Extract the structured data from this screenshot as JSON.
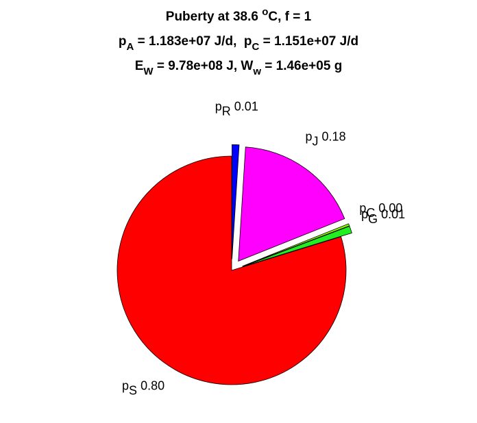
{
  "chart_data": {
    "type": "pie",
    "title_lines": [
      [
        {
          "text": "Puberty at 38.6 "
        },
        {
          "text": "o",
          "shift": "sup"
        },
        {
          "text": "C, f = 1"
        }
      ],
      [
        {
          "text": "p"
        },
        {
          "text": "A",
          "shift": "sub"
        },
        {
          "text": " = 1.183e+07 J/d,  p"
        },
        {
          "text": "C",
          "shift": "sub"
        },
        {
          "text": " = 1.151e+07 J/d"
        }
      ],
      [
        {
          "text": "E"
        },
        {
          "text": "W",
          "shift": "sub"
        },
        {
          "text": " = 9.78e+08 J, W"
        },
        {
          "text": "w",
          "shift": "sub"
        },
        {
          "text": " = 1.46e+05 g"
        }
      ]
    ],
    "categories": [
      {
        "main": "p",
        "sub": "S"
      },
      {
        "main": "p",
        "sub": "G"
      },
      {
        "main": "p",
        "sub": "C"
      },
      {
        "main": "p",
        "sub": "J"
      },
      {
        "main": "p",
        "sub": "R"
      }
    ],
    "values": [
      0.8,
      0.01,
      0.003,
      0.18,
      0.01
    ],
    "value_labels": [
      "0.80",
      "0.01",
      "0.00",
      "0.18",
      "0.01"
    ],
    "colors": [
      "#ff0000",
      "#22ee22",
      "#88ff00",
      "#ff00ff",
      "#0000ff"
    ],
    "explode": [
      false,
      true,
      true,
      true,
      true
    ]
  }
}
